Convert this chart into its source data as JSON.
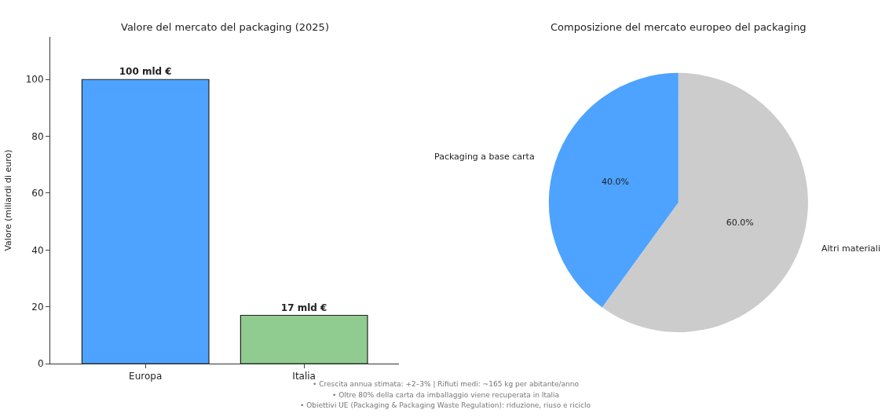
{
  "chart_data": [
    {
      "type": "bar",
      "title": "Valore del mercato del packaging (2025)",
      "ylabel": "Valore (miliardi di euro)",
      "categories": [
        "Europa",
        "Italia"
      ],
      "values": [
        100,
        17
      ],
      "colors": [
        "#4da3ff",
        "#90cc8f"
      ],
      "value_labels": [
        "100 mld €",
        "17 mld €"
      ],
      "ylim": [
        0,
        115
      ],
      "yticks": [
        0,
        20,
        40,
        60,
        80,
        100
      ],
      "annotations": [
        "• Crescita annua stimata: +2–3% | Rifiuti medi: ~165 kg per abitante/anno",
        "• Oltre 80% della carta da imballaggio viene recuperata in Italia",
        "• Obiettivi UE (Packaging & Packaging Waste Regulation): riduzione, riuso e riciclo"
      ]
    },
    {
      "type": "pie",
      "title": "Composizione del mercato europeo del packaging",
      "categories": [
        "Packaging a base carta",
        "Altri materiali"
      ],
      "values": [
        40,
        60
      ],
      "colors": [
        "#4da3ff",
        "#cccccc"
      ],
      "value_labels": [
        "40.0%",
        "60.0%"
      ]
    }
  ]
}
